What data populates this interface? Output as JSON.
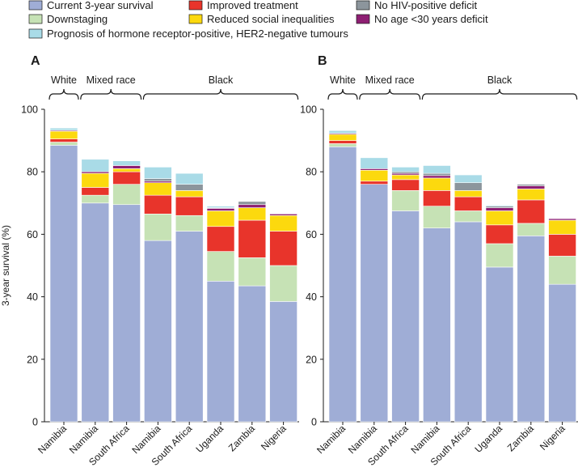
{
  "chart_data": {
    "type": "bar",
    "stacked": true,
    "ylabel": "3-year survival (%)",
    "ylim": [
      0,
      100
    ],
    "yticks": [
      0,
      20,
      40,
      60,
      80,
      100
    ],
    "legend": [
      {
        "key": "current",
        "label": "Current 3-year survival",
        "color": "#9fadd6"
      },
      {
        "key": "downstaging",
        "label": "Downstaging",
        "color": "#c6e2b5"
      },
      {
        "key": "prognosis",
        "label": "Prognosis of hormone receptor-positive, HER2-negative tumours",
        "color": "#a9dbe7"
      },
      {
        "key": "treatment",
        "label": "Improved treatment",
        "color": "#e8342b"
      },
      {
        "key": "social",
        "label": "Reduced social inequalities",
        "color": "#fcd90e"
      },
      {
        "key": "hiv",
        "label": "No HIV-positive deficit",
        "color": "#8c959c"
      },
      {
        "key": "age",
        "label": "No age <30 years deficit",
        "color": "#8e1f73"
      }
    ],
    "stack_order": [
      "current",
      "downstaging",
      "treatment",
      "social",
      "age",
      "hiv",
      "prognosis"
    ],
    "categories": [
      "Namibia",
      "Namibia",
      "South Africa",
      "Namibia",
      "South Africa",
      "Uganda",
      "Zambia",
      "Nigeria"
    ],
    "groups": [
      {
        "label": "White",
        "start": 0,
        "end": 0
      },
      {
        "label": "Mixed race",
        "start": 1,
        "end": 2
      },
      {
        "label": "Black",
        "start": 3,
        "end": 7
      }
    ],
    "panels": [
      {
        "label": "A",
        "bars": [
          {
            "current": 88.5,
            "downstaging": 1.0,
            "treatment": 1.0,
            "social": 2.5,
            "age": 0.3,
            "hiv": 0.0,
            "prognosis": 0.7
          },
          {
            "current": 70.0,
            "downstaging": 2.5,
            "treatment": 2.5,
            "social": 4.5,
            "age": 0.5,
            "hiv": 0.0,
            "prognosis": 4.0
          },
          {
            "current": 69.5,
            "downstaging": 6.5,
            "treatment": 4.0,
            "social": 1.0,
            "age": 1.0,
            "hiv": 0.0,
            "prognosis": 1.5
          },
          {
            "current": 58.0,
            "downstaging": 8.5,
            "treatment": 6.0,
            "social": 4.0,
            "age": 0.5,
            "hiv": 0.8,
            "prognosis": 3.7
          },
          {
            "current": 61.0,
            "downstaging": 5.0,
            "treatment": 6.0,
            "social": 2.0,
            "age": 0.0,
            "hiv": 2.0,
            "prognosis": 3.5
          },
          {
            "current": 45.0,
            "downstaging": 9.5,
            "treatment": 8.0,
            "social": 5.0,
            "age": 0.8,
            "hiv": 0.2,
            "prognosis": 0.5
          },
          {
            "current": 43.5,
            "downstaging": 9.0,
            "treatment": 12.0,
            "social": 4.0,
            "age": 1.0,
            "hiv": 1.0,
            "prognosis": 0.0
          },
          {
            "current": 38.5,
            "downstaging": 11.5,
            "treatment": 11.0,
            "social": 5.0,
            "age": 0.5,
            "hiv": 0.0,
            "prognosis": 0.0
          }
        ]
      },
      {
        "label": "B",
        "bars": [
          {
            "current": 88.0,
            "downstaging": 1.0,
            "treatment": 1.0,
            "social": 2.0,
            "age": 0.3,
            "hiv": 0.0,
            "prognosis": 0.9
          },
          {
            "current": 76.0,
            "downstaging": 0.0,
            "treatment": 1.0,
            "social": 3.5,
            "age": 0.5,
            "hiv": 0.0,
            "prognosis": 3.5
          },
          {
            "current": 67.5,
            "downstaging": 6.5,
            "treatment": 3.5,
            "social": 1.5,
            "age": 0.5,
            "hiv": 0.5,
            "prognosis": 1.5
          },
          {
            "current": 62.0,
            "downstaging": 7.0,
            "treatment": 5.0,
            "social": 4.0,
            "age": 0.8,
            "hiv": 0.7,
            "prognosis": 2.5
          },
          {
            "current": 64.0,
            "downstaging": 3.5,
            "treatment": 4.5,
            "social": 2.0,
            "age": 0.0,
            "hiv": 2.5,
            "prognosis": 2.5
          },
          {
            "current": 49.5,
            "downstaging": 7.5,
            "treatment": 6.0,
            "social": 4.5,
            "age": 1.0,
            "hiv": 0.5,
            "prognosis": 0.3
          },
          {
            "current": 59.5,
            "downstaging": 4.0,
            "treatment": 7.5,
            "social": 3.5,
            "age": 1.0,
            "hiv": 0.5,
            "prognosis": 0.0
          },
          {
            "current": 44.0,
            "downstaging": 9.0,
            "treatment": 7.0,
            "social": 4.5,
            "age": 0.5,
            "hiv": 0.0,
            "prognosis": 0.0
          }
        ]
      }
    ]
  }
}
